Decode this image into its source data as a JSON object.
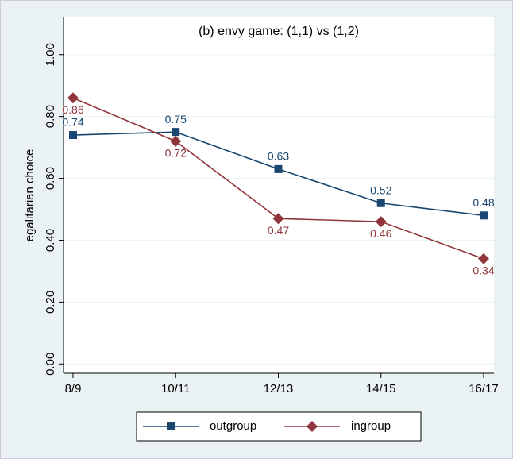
{
  "chart_data": {
    "type": "line",
    "title": "(b) envy game: (1,1) vs (1,2)",
    "y_label": "egalitarian choice",
    "categories": [
      "8/9",
      "10/11",
      "12/13",
      "14/15",
      "16/17"
    ],
    "series": [
      {
        "name": "outgroup",
        "color": "#1a476f",
        "marker": "square",
        "values": [
          0.74,
          0.75,
          0.63,
          0.52,
          0.48
        ]
      },
      {
        "name": "ingroup",
        "color": "#90353b",
        "marker": "diamond",
        "values": [
          0.86,
          0.72,
          0.47,
          0.46,
          0.34
        ]
      }
    ],
    "ylim": [
      -0.03,
      1.12
    ],
    "yticks": [
      {
        "value": 0,
        "label": "0.00"
      },
      {
        "value": 0.2,
        "label": "0.20"
      },
      {
        "value": 0.4,
        "label": "0.40"
      },
      {
        "value": 0.6,
        "label": "0.60"
      },
      {
        "value": 0.8,
        "label": "0.80"
      },
      {
        "value": 1,
        "label": "1.00"
      }
    ],
    "grid": true
  }
}
